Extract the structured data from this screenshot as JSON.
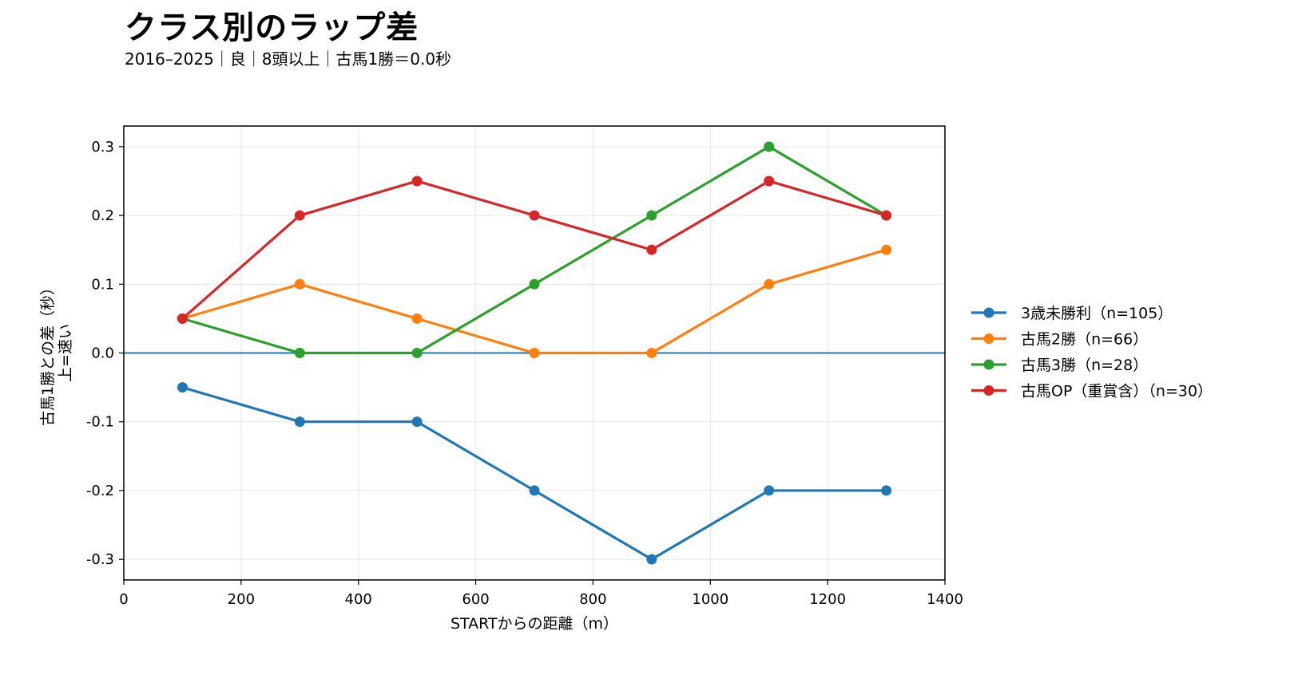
{
  "chart_data": {
    "type": "line",
    "title": "クラス別のラップ差",
    "subtitle": "2016–2025｜良｜8頭以上｜古馬1勝＝0.0秒",
    "xlabel": "STARTからの距離（m）",
    "ylabel": "古馬1勝との差（秒）",
    "ylabel2": "上=速い",
    "xlim": [
      0,
      1400
    ],
    "ylim": [
      -0.33,
      0.33
    ],
    "xticks": [
      0,
      200,
      400,
      600,
      800,
      1000,
      1200,
      1400
    ],
    "yticks": [
      0.3,
      0.2,
      0.1,
      0.0,
      -0.1,
      -0.2,
      -0.3
    ],
    "ytick_labels": [
      "0.3",
      "0.2",
      "0.1",
      "0.0",
      "-0.1",
      "-0.2",
      "-0.3"
    ],
    "reference_line": 0.0,
    "reference_color": "#1f77b4",
    "grid": true,
    "legend_position": "right-outside",
    "x": [
      100,
      300,
      500,
      700,
      900,
      1100,
      1300
    ],
    "series": [
      {
        "name": "3歳未勝利（n=105）",
        "color": "#1f77b4",
        "values": [
          -0.05,
          -0.1,
          -0.1,
          -0.2,
          -0.3,
          -0.2,
          -0.2
        ]
      },
      {
        "name": "古馬2勝（n=66）",
        "color": "#ff7f0e",
        "values": [
          0.05,
          0.1,
          0.05,
          0.0,
          0.0,
          0.1,
          0.15
        ]
      },
      {
        "name": "古馬3勝（n=28）",
        "color": "#2ca02c",
        "values": [
          0.05,
          0.0,
          0.0,
          0.1,
          0.2,
          0.3,
          0.2
        ]
      },
      {
        "name": "古馬OP（重賞含）（n=30）",
        "color": "#d62728",
        "values": [
          0.05,
          0.2,
          0.25,
          0.2,
          0.15,
          0.25,
          0.2
        ]
      }
    ]
  }
}
